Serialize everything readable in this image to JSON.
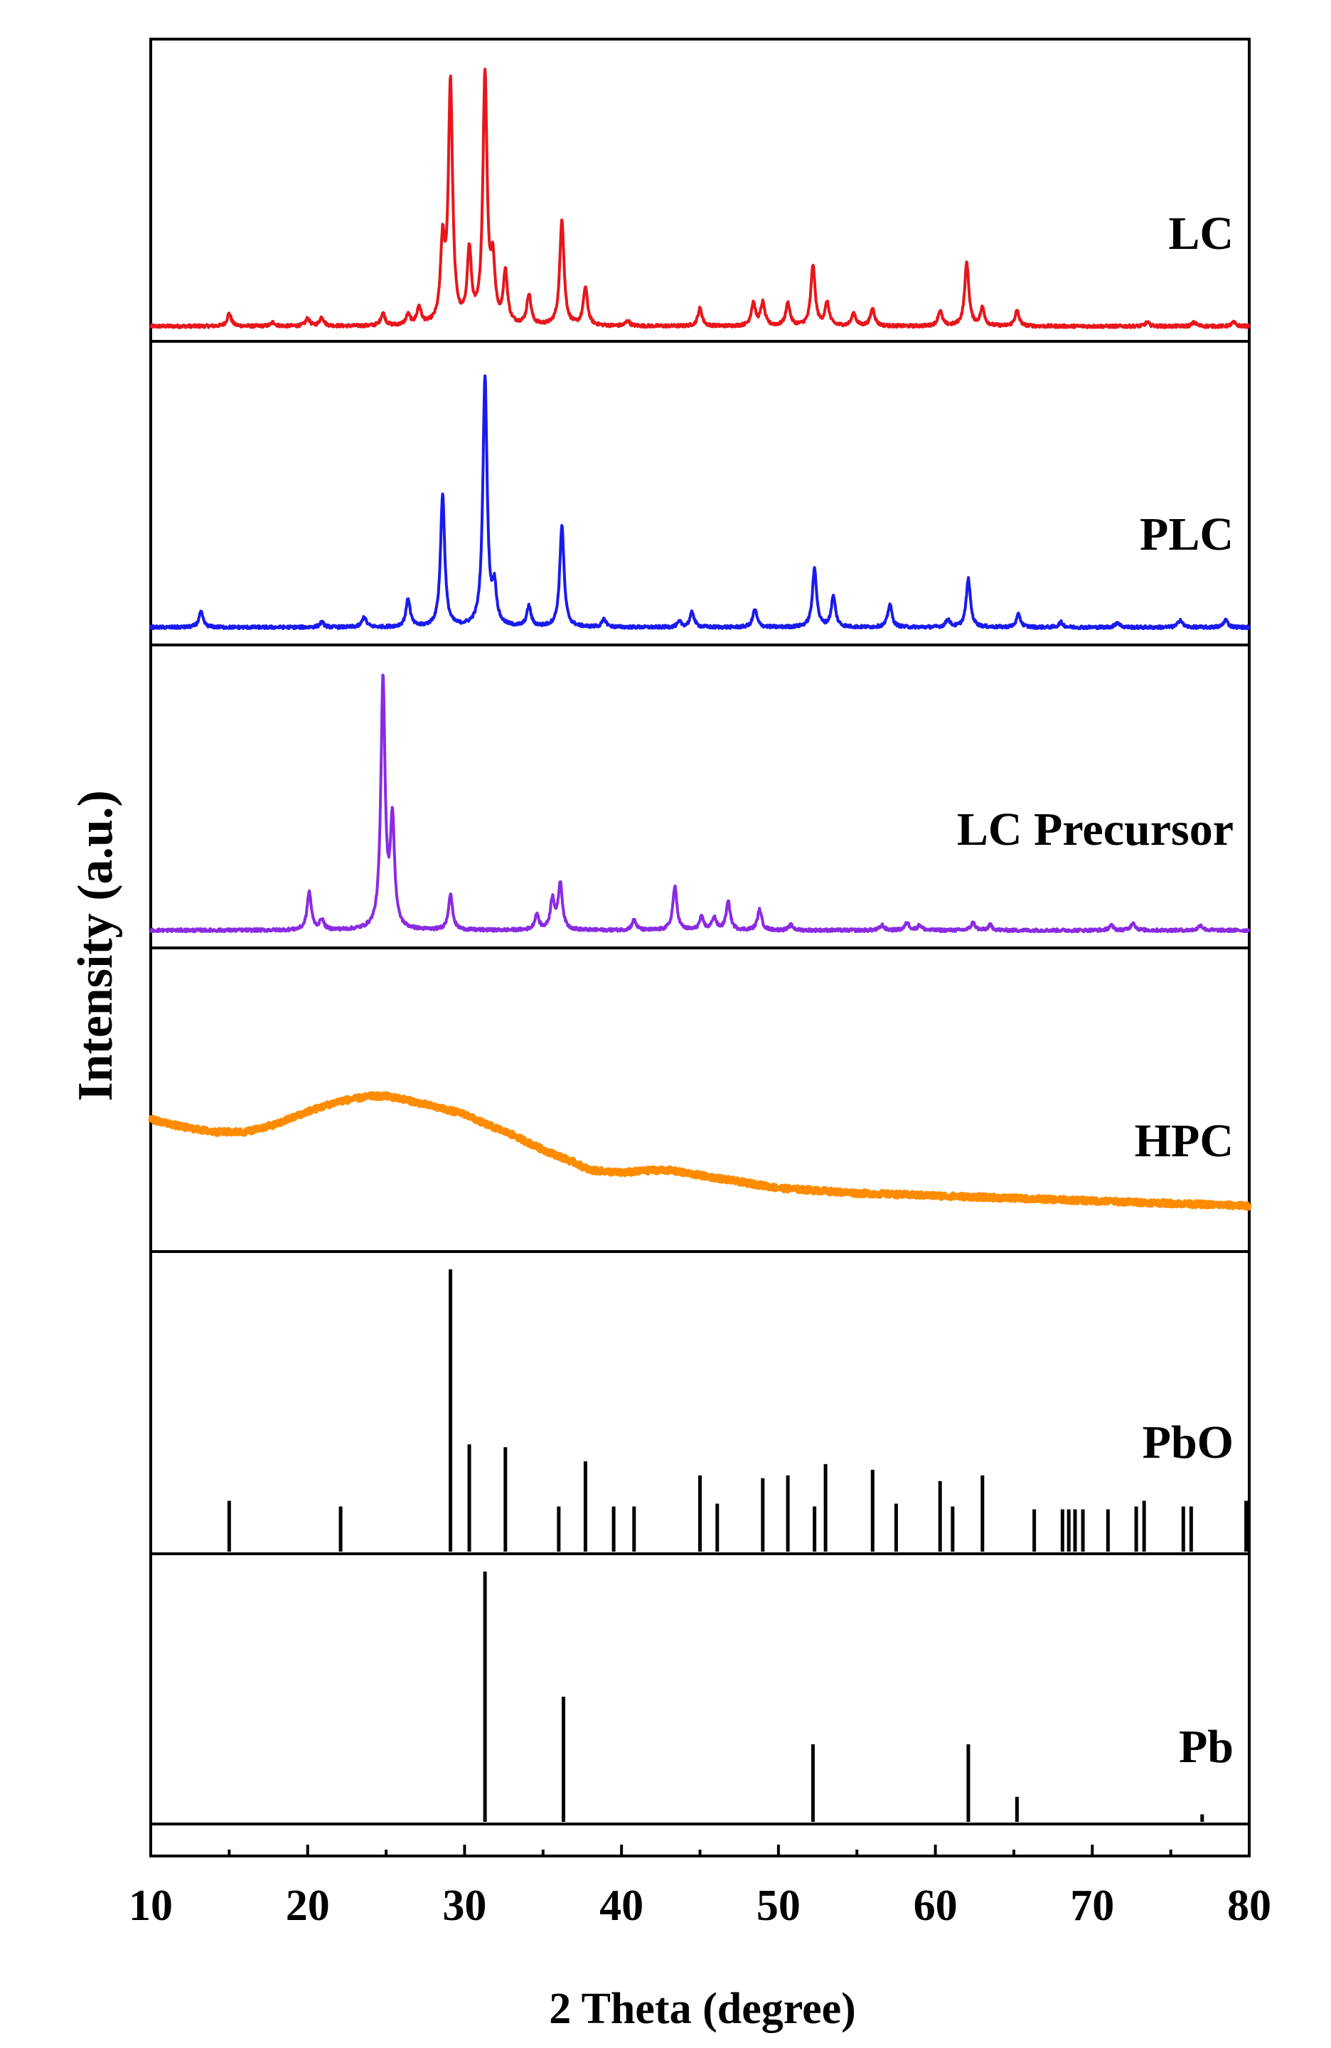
{
  "chart_data": {
    "type": "line",
    "title": "",
    "xlabel": "2 Theta (degree)",
    "ylabel": "Intensity (a.u.)",
    "xlim": [
      10,
      80
    ],
    "x_ticks": [
      10,
      20,
      30,
      40,
      50,
      60,
      70,
      80
    ],
    "x_tick_labels": [
      "10",
      "20",
      "30",
      "40",
      "50",
      "60",
      "70",
      "80"
    ],
    "grid": false,
    "legend": "per-panel labels at right",
    "series": [
      {
        "name": "LC",
        "kind": "pattern",
        "color": "#e8161b",
        "baseline": 0.02,
        "peaks": [
          {
            "x": 15.0,
            "h": 0.05
          },
          {
            "x": 17.8,
            "h": 0.015
          },
          {
            "x": 20.0,
            "h": 0.03
          },
          {
            "x": 20.9,
            "h": 0.035
          },
          {
            "x": 24.8,
            "h": 0.05
          },
          {
            "x": 26.4,
            "h": 0.04
          },
          {
            "x": 27.1,
            "h": 0.07
          },
          {
            "x": 28.6,
            "h": 0.3
          },
          {
            "x": 29.1,
            "h": 0.95
          },
          {
            "x": 30.3,
            "h": 0.28
          },
          {
            "x": 31.3,
            "h": 0.98
          },
          {
            "x": 31.8,
            "h": 0.22
          },
          {
            "x": 32.6,
            "h": 0.2
          },
          {
            "x": 34.1,
            "h": 0.12
          },
          {
            "x": 36.2,
            "h": 0.42
          },
          {
            "x": 37.7,
            "h": 0.15
          },
          {
            "x": 40.4,
            "h": 0.02
          },
          {
            "x": 45.0,
            "h": 0.07
          },
          {
            "x": 48.4,
            "h": 0.09
          },
          {
            "x": 49.0,
            "h": 0.09
          },
          {
            "x": 50.6,
            "h": 0.09
          },
          {
            "x": 52.2,
            "h": 0.24
          },
          {
            "x": 53.1,
            "h": 0.09
          },
          {
            "x": 54.8,
            "h": 0.05
          },
          {
            "x": 56.0,
            "h": 0.07
          },
          {
            "x": 60.3,
            "h": 0.06
          },
          {
            "x": 62.0,
            "h": 0.25
          },
          {
            "x": 63.0,
            "h": 0.07
          },
          {
            "x": 65.2,
            "h": 0.06
          },
          {
            "x": 73.5,
            "h": 0.015
          },
          {
            "x": 76.5,
            "h": 0.015
          },
          {
            "x": 79.0,
            "h": 0.015
          }
        ]
      },
      {
        "name": "PLC",
        "kind": "pattern",
        "color": "#1a1aee",
        "baseline": 0.03,
        "peaks": [
          {
            "x": 13.2,
            "h": 0.06
          },
          {
            "x": 20.9,
            "h": 0.02
          },
          {
            "x": 23.6,
            "h": 0.04
          },
          {
            "x": 26.4,
            "h": 0.11
          },
          {
            "x": 28.6,
            "h": 0.52
          },
          {
            "x": 31.3,
            "h": 0.98
          },
          {
            "x": 31.9,
            "h": 0.14
          },
          {
            "x": 34.1,
            "h": 0.08
          },
          {
            "x": 36.2,
            "h": 0.4
          },
          {
            "x": 38.9,
            "h": 0.03
          },
          {
            "x": 43.7,
            "h": 0.02
          },
          {
            "x": 44.5,
            "h": 0.06
          },
          {
            "x": 48.5,
            "h": 0.07
          },
          {
            "x": 52.3,
            "h": 0.23
          },
          {
            "x": 53.5,
            "h": 0.12
          },
          {
            "x": 57.1,
            "h": 0.09
          },
          {
            "x": 60.8,
            "h": 0.03
          },
          {
            "x": 62.1,
            "h": 0.19
          },
          {
            "x": 65.3,
            "h": 0.05
          },
          {
            "x": 68.0,
            "h": 0.02
          },
          {
            "x": 71.6,
            "h": 0.02
          },
          {
            "x": 75.6,
            "h": 0.03
          },
          {
            "x": 78.5,
            "h": 0.03
          }
        ]
      },
      {
        "name": "LC Precursor",
        "kind": "pattern",
        "color": "#8a2be2",
        "baseline": 0.03,
        "peaks": [
          {
            "x": 20.1,
            "h": 0.15
          },
          {
            "x": 20.9,
            "h": 0.04
          },
          {
            "x": 24.8,
            "h": 0.98
          },
          {
            "x": 25.4,
            "h": 0.42
          },
          {
            "x": 29.1,
            "h": 0.14
          },
          {
            "x": 34.6,
            "h": 0.06
          },
          {
            "x": 35.6,
            "h": 0.12
          },
          {
            "x": 36.1,
            "h": 0.18
          },
          {
            "x": 40.8,
            "h": 0.04
          },
          {
            "x": 43.4,
            "h": 0.17
          },
          {
            "x": 45.1,
            "h": 0.05
          },
          {
            "x": 45.9,
            "h": 0.05
          },
          {
            "x": 46.8,
            "h": 0.11
          },
          {
            "x": 48.8,
            "h": 0.08
          },
          {
            "x": 50.8,
            "h": 0.02
          },
          {
            "x": 56.6,
            "h": 0.02
          },
          {
            "x": 58.2,
            "h": 0.03
          },
          {
            "x": 59.0,
            "h": 0.02
          },
          {
            "x": 62.4,
            "h": 0.03
          },
          {
            "x": 63.5,
            "h": 0.02
          },
          {
            "x": 71.2,
            "h": 0.02
          },
          {
            "x": 72.6,
            "h": 0.03
          },
          {
            "x": 76.9,
            "h": 0.02
          }
        ]
      },
      {
        "name": "HPC",
        "kind": "amorphous",
        "color": "#ff8c00",
        "x": [
          10,
          12,
          14,
          16,
          18,
          20,
          22,
          24,
          25,
          26,
          28,
          30,
          31,
          33,
          35,
          37,
          38,
          40,
          42,
          43,
          45,
          47,
          50,
          55,
          60,
          65,
          70,
          75,
          80
        ],
        "y": [
          0.48,
          0.45,
          0.43,
          0.43,
          0.46,
          0.51,
          0.55,
          0.57,
          0.57,
          0.56,
          0.53,
          0.5,
          0.47,
          0.42,
          0.36,
          0.31,
          0.28,
          0.27,
          0.28,
          0.28,
          0.26,
          0.24,
          0.21,
          0.19,
          0.18,
          0.17,
          0.16,
          0.15,
          0.14
        ]
      },
      {
        "name": "PbO",
        "kind": "sticks",
        "color": "#000000",
        "x": [
          15.0,
          22.1,
          29.1,
          30.3,
          32.6,
          36.0,
          37.7,
          39.5,
          40.8,
          45.0,
          46.1,
          49.0,
          50.6,
          52.3,
          53.0,
          56.0,
          57.5,
          60.3,
          61.1,
          63.0,
          66.3,
          68.1,
          68.5,
          68.9,
          69.4,
          71.0,
          72.8,
          73.3,
          75.8,
          76.3,
          79.8
        ],
        "h": [
          0.18,
          0.16,
          1.0,
          0.38,
          0.37,
          0.16,
          0.32,
          0.16,
          0.16,
          0.27,
          0.17,
          0.26,
          0.27,
          0.16,
          0.31,
          0.29,
          0.17,
          0.25,
          0.16,
          0.27,
          0.15,
          0.15,
          0.15,
          0.15,
          0.15,
          0.15,
          0.16,
          0.18,
          0.16,
          0.16,
          0.18
        ]
      },
      {
        "name": "Pb",
        "kind": "sticks",
        "color": "#000000",
        "x": [
          31.3,
          36.3,
          52.2,
          62.1,
          65.2,
          77.0
        ],
        "h": [
          1.0,
          0.5,
          0.31,
          0.31,
          0.1,
          0.03
        ]
      }
    ]
  }
}
